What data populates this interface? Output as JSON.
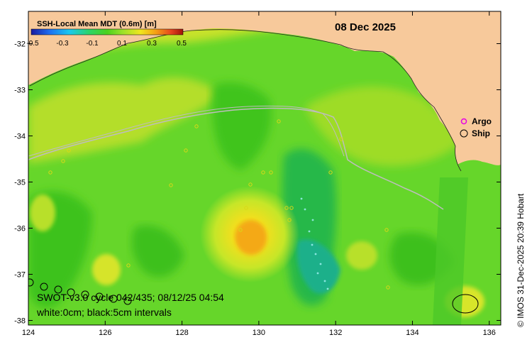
{
  "map": {
    "title": "SSH-Local Mean MDT (0.6m) [m]",
    "date": "08 Dec 2025",
    "colorbar": {
      "min": -0.5,
      "max": 0.5,
      "ticks": [
        "-0.5",
        "-0.3",
        "-0.1",
        "0.1",
        "0.3",
        "0.5"
      ],
      "colors": [
        "#1a1aa0",
        "#1e6ef0",
        "#19c8f0",
        "#2bd46a",
        "#4bd21e",
        "#9be12a",
        "#f0e61e",
        "#f5a014",
        "#e6461e",
        "#a0140a"
      ]
    },
    "x_axis": {
      "range": [
        124,
        136.3
      ],
      "ticks": [
        "124",
        "126",
        "128",
        "130",
        "132",
        "134",
        "136"
      ]
    },
    "y_axis": {
      "range": [
        -38.1,
        -31.3
      ],
      "ticks": [
        "-32",
        "-33",
        "-34",
        "-35",
        "-36",
        "-37",
        "-38"
      ]
    },
    "legend": {
      "argo_label": "Argo",
      "ship_label": "Ship",
      "argo_color": "#e600e6",
      "ship_color": "#000000"
    },
    "annotation_line1": "SWOT-v3.0 cycle 042/435; 08/12/25 04:54",
    "annotation_line2": "white:0cm; black:5cm intervals",
    "credit": "© IMOS 31-Dec-2025 20:39 Hobart",
    "colors": {
      "land": "#f7c99b",
      "ocean_base": "#66d62a"
    }
  }
}
